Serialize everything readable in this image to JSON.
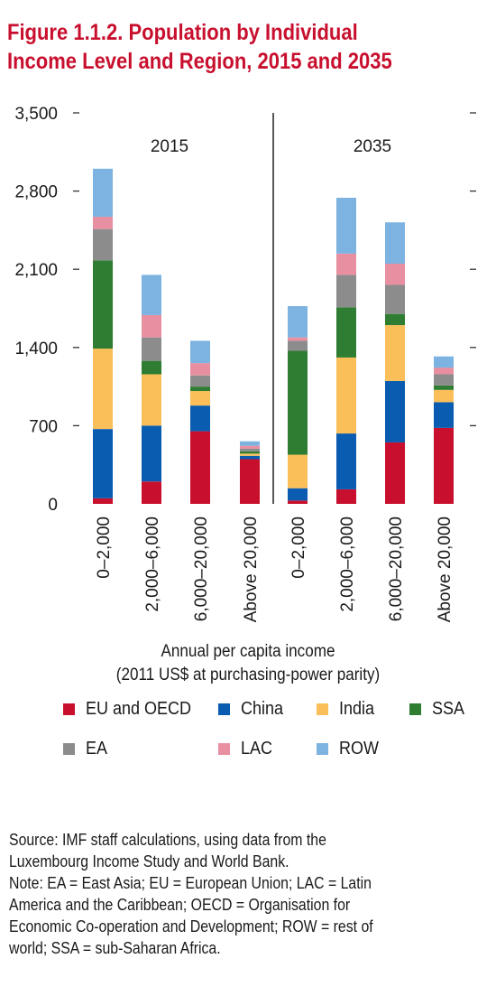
{
  "title_lines": [
    "Figure 1.1.2. Population by Individual",
    "Income Level and Region, 2015 and 2035"
  ],
  "xlabel_lines": [
    "Annual per capita income",
    "(2011 US$ at purchasing-power parity)"
  ],
  "source_lines": [
    "Source: IMF staff calculations, using data from the",
    "Luxembourg Income Study and World Bank.",
    "Note: EA = East Asia; EU = European Union; LAC = Latin",
    "America and the Caribbean; OECD = Organisation for",
    "Economic Co-operation and Development; ROW = rest of",
    "world; SSA = sub-Saharan Africa."
  ],
  "chart_data": {
    "type": "bar",
    "stacked": true,
    "ylim": [
      0,
      3500
    ],
    "yticks": [
      "0",
      "700",
      "1,400",
      "2,100",
      "2,800",
      "3,500"
    ],
    "ytick_values": [
      0,
      700,
      1400,
      2100,
      2800,
      3500
    ],
    "panels": [
      "2015",
      "2035"
    ],
    "categories": [
      "0–2,000",
      "2,000–6,000",
      "6,000–20,000",
      "Above 20,000",
      "0–2,000",
      "2,000–6,000",
      "6,000–20,000",
      "Above 20,000"
    ],
    "category_panel": [
      "2015",
      "2015",
      "2015",
      "2015",
      "2035",
      "2035",
      "2035",
      "2035"
    ],
    "series": [
      {
        "name": "EU and OECD",
        "color": "#c8102e",
        "values": [
          50,
          200,
          650,
          400,
          30,
          130,
          550,
          680
        ]
      },
      {
        "name": "China",
        "color": "#0a5cb0",
        "values": [
          620,
          500,
          230,
          30,
          110,
          500,
          550,
          230
        ]
      },
      {
        "name": "India",
        "color": "#fbbf59",
        "values": [
          720,
          460,
          130,
          20,
          300,
          680,
          500,
          110
        ]
      },
      {
        "name": "SSA",
        "color": "#2e7d32",
        "values": [
          790,
          120,
          40,
          20,
          930,
          450,
          100,
          40
        ]
      },
      {
        "name": "EA",
        "color": "#8c8c8c",
        "values": [
          280,
          210,
          100,
          25,
          90,
          290,
          260,
          100
        ]
      },
      {
        "name": "LAC",
        "color": "#e88fa1",
        "values": [
          110,
          200,
          110,
          25,
          30,
          190,
          190,
          60
        ]
      },
      {
        "name": "ROW",
        "color": "#7db3e0",
        "values": [
          430,
          360,
          200,
          40,
          280,
          500,
          370,
          100
        ]
      }
    ],
    "legend": [
      "EU and OECD",
      "China",
      "India",
      "SSA",
      "EA",
      "LAC",
      "ROW"
    ],
    "legend_placement": "bottom",
    "grid": false
  }
}
